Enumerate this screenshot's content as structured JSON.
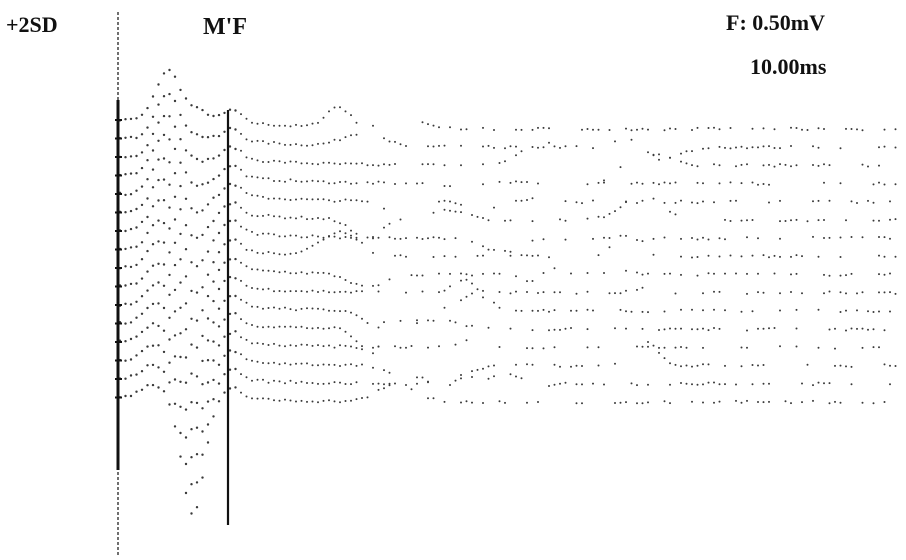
{
  "labels": {
    "sd": "+2SD",
    "markers": "M'F",
    "gain": "F:  0.50mV",
    "sweep": "10.00ms"
  },
  "colors": {
    "trace": "#3a3a3a",
    "marker": "#111111",
    "background": "#ffffff"
  },
  "chart_data": {
    "type": "line",
    "title": "",
    "xlabel": "",
    "ylabel": "",
    "gain": "0.50mV",
    "sweep": "10.00ms",
    "grid": false,
    "legend": "none",
    "trace_count": 16,
    "x_unit": "ms",
    "x_range_ms": [
      0,
      78
    ],
    "markers": [
      {
        "name": "M'",
        "x_ms": 0.0
      },
      {
        "name": "F",
        "x_ms": 11.0
      }
    ],
    "m_wave": {
      "first_trace": {
        "peak_ms": 5.0,
        "peak_mv": 0.55,
        "trough_ms": 8.0,
        "trough_mv": -0.1
      },
      "last_trace": {
        "peak_ms": 3.5,
        "peak_mv": 0.1,
        "trough_ms": 7.5,
        "trough_mv": -1.3
      }
    },
    "f_wave_latency_ms": [
      22,
      55
    ],
    "series": [
      {
        "values": [
          0.5,
          0.1
        ]
      },
      {
        "values": [
          0.45,
          0.02
        ]
      },
      {
        "values": [
          0.42,
          -0.05
        ]
      },
      {
        "values": [
          0.4,
          -0.12
        ]
      },
      {
        "values": [
          0.36,
          -0.2
        ]
      },
      {
        "values": [
          0.33,
          -0.3
        ]
      },
      {
        "values": [
          0.3,
          -0.4
        ]
      },
      {
        "values": [
          0.27,
          -0.5
        ]
      },
      {
        "values": [
          0.25,
          -0.6
        ]
      },
      {
        "values": [
          0.22,
          -0.7
        ]
      },
      {
        "values": [
          0.2,
          -0.8
        ]
      },
      {
        "values": [
          0.18,
          -0.9
        ]
      },
      {
        "values": [
          0.15,
          -1.0
        ]
      },
      {
        "values": [
          0.13,
          -1.1
        ]
      },
      {
        "values": [
          0.11,
          -1.2
        ]
      },
      {
        "values": [
          0.1,
          -1.3
        ]
      }
    ]
  }
}
